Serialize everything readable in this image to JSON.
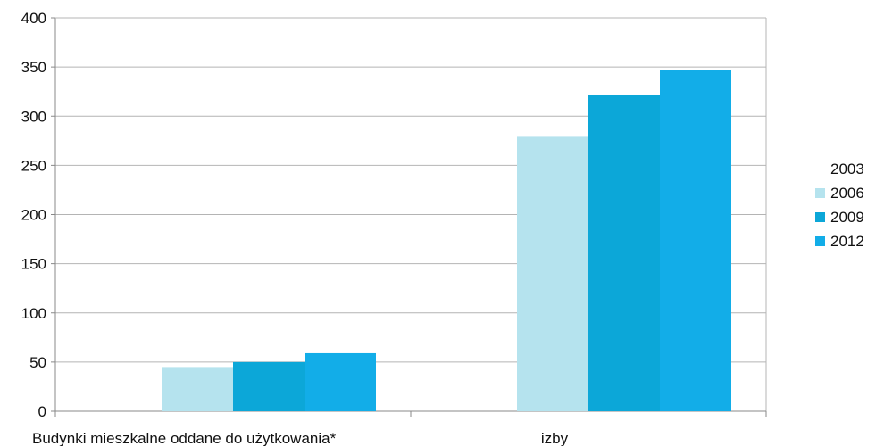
{
  "chart_data": {
    "type": "bar",
    "title": "",
    "xlabel": "",
    "ylabel": "",
    "ylim": [
      0,
      400
    ],
    "yticks": [
      0,
      50,
      100,
      150,
      200,
      250,
      300,
      350,
      400
    ],
    "grid": true,
    "legend_position": "right",
    "categories": [
      "Budynki mieszkalne oddane do użytkowania*",
      "izby"
    ],
    "series": [
      {
        "name": "2003",
        "values": [
          0,
          0
        ],
        "color": "#ffffff"
      },
      {
        "name": "2006",
        "values": [
          45,
          279
        ],
        "color": "#b5e3ee"
      },
      {
        "name": "2009",
        "values": [
          50,
          322
        ],
        "color": "#0ca7d8"
      },
      {
        "name": "2012",
        "values": [
          59,
          347
        ],
        "color": "#12ade8"
      }
    ]
  }
}
